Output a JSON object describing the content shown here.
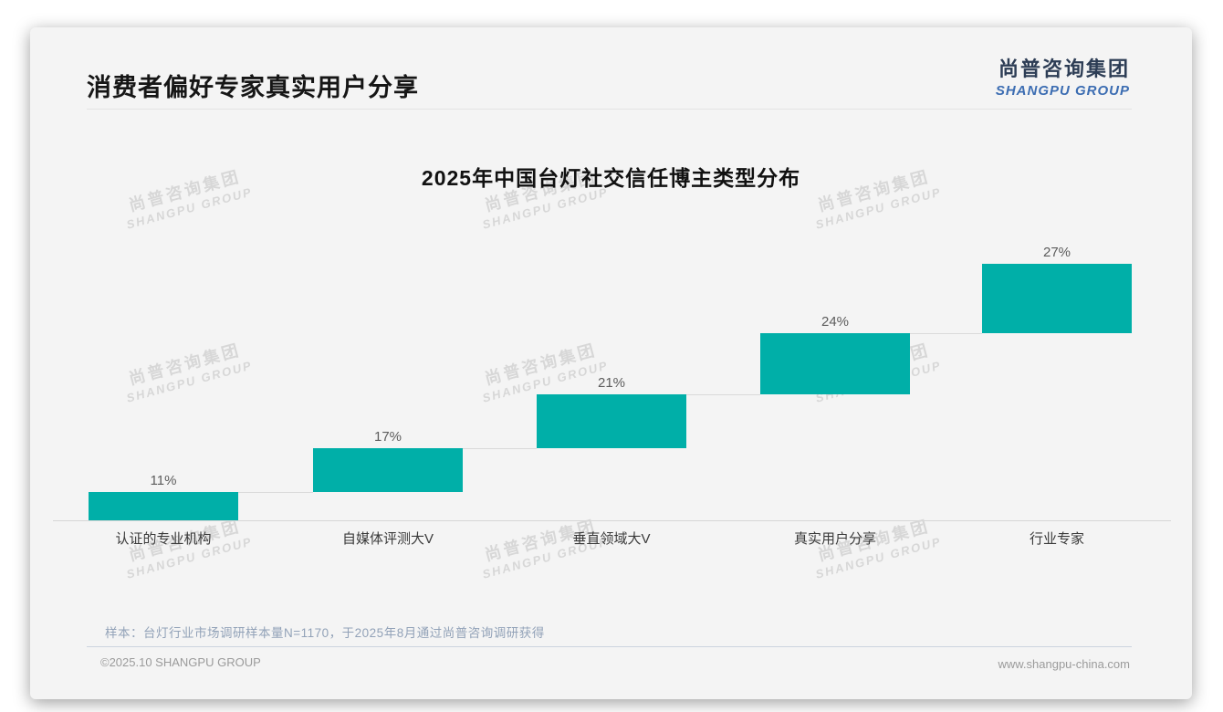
{
  "page": {
    "title": "消费者偏好专家真实用户分享",
    "logo": {
      "cn": "尚普咨询集团",
      "en": "SHANGPU GROUP"
    },
    "watermark": {
      "cn": "尚普咨询集团",
      "en": "SHANGPU GROUP"
    },
    "footer": {
      "note": "样本：台灯行业市场调研样本量N=1170，于2025年8月通过尚普咨询调研获得",
      "copyright": "©2025.10 SHANGPU GROUP",
      "website": "www.shangpu-china.com"
    }
  },
  "chart_data": {
    "type": "bar",
    "subtype": "waterfall-steps",
    "title": "2025年中国台灯社交信任博主类型分布",
    "categories": [
      "认证的专业机构",
      "自媒体评测大V",
      "垂直领域大V",
      "真实用户分享",
      "行业专家"
    ],
    "values": [
      11,
      17,
      21,
      24,
      27
    ],
    "labels": [
      "11%",
      "17%",
      "21%",
      "24%",
      "27%"
    ],
    "cumulative": [
      11,
      28,
      49,
      73,
      100
    ],
    "bar_color": "#00AFA8",
    "xlabel": "",
    "ylabel": "",
    "ylim": [
      0,
      100
    ],
    "grid": false,
    "legend": false,
    "value_label_color": "#5c5c5c"
  }
}
